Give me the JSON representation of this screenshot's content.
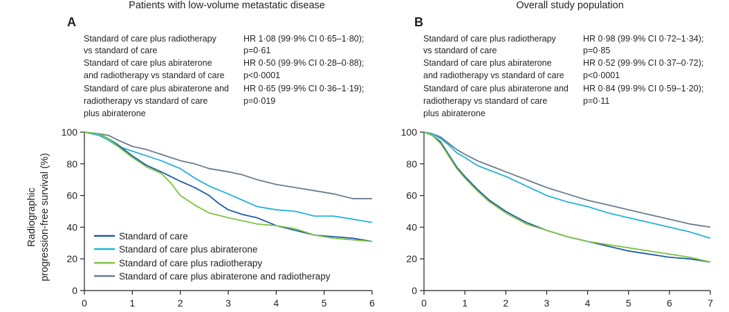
{
  "y_axis_label": [
    "Radiographic",
    "progression-free survival (%)"
  ],
  "legend": [
    {
      "label": "Standard of care",
      "color": "#1d5aa6"
    },
    {
      "label": "Standard of care plus abiraterone",
      "color": "#21b1d9"
    },
    {
      "label": "Standard of care plus radiotherapy",
      "color": "#7ec242"
    },
    {
      "label": "Standard of care plus abiraterone and radiotherapy",
      "color": "#687c8c"
    }
  ],
  "chart_data": [
    {
      "type": "line",
      "panel": "A",
      "title": "Patients with low-volume metastatic disease",
      "xlabel": "",
      "ylabel": "Radiographic progression-free survival (%)",
      "xlim": [
        0,
        6
      ],
      "ylim": [
        0,
        100
      ],
      "xticks": [
        "0",
        "1",
        "2",
        "3",
        "4",
        "5",
        "6"
      ],
      "yticks": [
        "0",
        "20",
        "40",
        "60",
        "80",
        "100"
      ],
      "hazard_ratios": [
        {
          "comparison": [
            "Standard of care plus radiotherapy",
            "vs standard of care"
          ],
          "result": [
            "HR 1·08 (99·9% CI 0·65–1·80);",
            "p=0·61"
          ]
        },
        {
          "comparison": [
            "Standard of care plus abiraterone",
            "and radiotherapy vs standard of care"
          ],
          "result": [
            "HR 0·50 (99·9% CI 0·28–0·88);",
            "p<0·0001"
          ]
        },
        {
          "comparison": [
            "Standard of care plus abiraterone and",
            "radiotherapy vs standard of care",
            "plus abiraterone"
          ],
          "result": [
            "HR 0·65 (99·9% CI 0·36–1·19);",
            "p=0·019"
          ]
        }
      ],
      "series": [
        {
          "name": "Standard of care plus abiraterone and radiotherapy",
          "x": [
            0,
            0.3,
            0.5,
            0.7,
            1.0,
            1.3,
            1.6,
            2.0,
            2.3,
            2.6,
            3.0,
            3.3,
            3.6,
            4.0,
            4.4,
            4.8,
            5.2,
            5.6,
            6.0
          ],
          "y": [
            100,
            99,
            98,
            95,
            91,
            89,
            86,
            82,
            80,
            77,
            75,
            73,
            70,
            67,
            65,
            63,
            61,
            58,
            58
          ]
        },
        {
          "name": "Standard of care plus abiraterone",
          "x": [
            0,
            0.3,
            0.5,
            0.7,
            1.0,
            1.3,
            1.6,
            2.0,
            2.3,
            2.6,
            3.0,
            3.3,
            3.6,
            4.0,
            4.4,
            4.8,
            5.2,
            5.6,
            6.0
          ],
          "y": [
            100,
            98,
            95,
            91,
            88,
            85,
            82,
            77,
            71,
            66,
            61,
            57,
            53,
            51,
            50,
            47,
            47,
            45,
            43
          ]
        },
        {
          "name": "Standard of care",
          "x": [
            0,
            0.3,
            0.5,
            0.7,
            1.0,
            1.3,
            1.6,
            2.0,
            2.3,
            2.6,
            2.8,
            3.0,
            3.3,
            3.6,
            4.0,
            4.4,
            4.8,
            5.2,
            5.6,
            6.0
          ],
          "y": [
            100,
            99,
            96,
            92,
            85,
            79,
            75,
            69,
            65,
            60,
            55,
            51,
            48,
            46,
            41,
            38,
            35,
            34,
            33,
            31
          ]
        },
        {
          "name": "Standard of care plus radiotherapy",
          "x": [
            0,
            0.3,
            0.5,
            0.7,
            1.0,
            1.3,
            1.6,
            1.8,
            2.0,
            2.3,
            2.6,
            3.0,
            3.3,
            3.6,
            4.0,
            4.4,
            4.8,
            5.2,
            5.6,
            6.0
          ],
          "y": [
            100,
            99,
            96,
            91,
            84,
            78,
            74,
            68,
            60,
            54,
            49,
            46,
            44,
            42,
            41,
            39,
            35,
            33,
            32,
            31
          ]
        }
      ]
    },
    {
      "type": "line",
      "panel": "B",
      "title": "Overall study population",
      "xlabel": "",
      "ylabel": "Radiographic progression-free survival (%)",
      "xlim": [
        0,
        7
      ],
      "ylim": [
        0,
        100
      ],
      "xticks": [
        "0",
        "1",
        "2",
        "3",
        "4",
        "5",
        "6",
        "7"
      ],
      "yticks": [
        "0",
        "20",
        "40",
        "60",
        "80",
        "100"
      ],
      "hazard_ratios": [
        {
          "comparison": [
            "Standard of care plus radiotherapy",
            "vs standard of care"
          ],
          "result": [
            "HR 0·98 (99·9% CI 0·72–1·34);",
            "p=0·85"
          ]
        },
        {
          "comparison": [
            "Standard of care plus abiraterone",
            "and radiotherapy vs standard of care"
          ],
          "result": [
            "HR 0·52 (99·9% CI 0·37–0·72);",
            "p<0·0001"
          ]
        },
        {
          "comparison": [
            "Standard of care plus abiraterone and",
            "radiotherapy vs standard of care",
            "plus abiraterone"
          ],
          "result": [
            "HR 0·84 (99·9% CI 0·59–1·20);",
            "p=0·11"
          ]
        }
      ],
      "series": [
        {
          "name": "Standard of care plus abiraterone and radiotherapy",
          "x": [
            0,
            0.2,
            0.4,
            0.6,
            0.8,
            1.0,
            1.3,
            1.6,
            2.0,
            2.5,
            3.0,
            3.5,
            4.0,
            4.5,
            5.0,
            5.5,
            6.0,
            6.5,
            7.0
          ],
          "y": [
            100,
            99,
            97,
            93,
            89,
            86,
            82,
            79,
            75,
            70,
            65,
            61,
            57,
            54,
            51,
            48,
            45,
            42,
            40
          ]
        },
        {
          "name": "Standard of care plus abiraterone",
          "x": [
            0,
            0.2,
            0.4,
            0.6,
            0.8,
            1.0,
            1.3,
            1.6,
            2.0,
            2.5,
            3.0,
            3.5,
            4.0,
            4.5,
            5.0,
            5.5,
            6.0,
            6.5,
            7.0
          ],
          "y": [
            100,
            99,
            96,
            92,
            87,
            84,
            79,
            76,
            72,
            66,
            60,
            56,
            53,
            49,
            46,
            43,
            40,
            37,
            33
          ]
        },
        {
          "name": "Standard of care",
          "x": [
            0,
            0.2,
            0.4,
            0.6,
            0.8,
            1.0,
            1.3,
            1.6,
            2.0,
            2.5,
            3.0,
            3.5,
            4.0,
            4.5,
            5.0,
            5.5,
            6.0,
            6.5,
            7.0
          ],
          "y": [
            100,
            98,
            94,
            86,
            78,
            72,
            64,
            57,
            50,
            43,
            38,
            34,
            31,
            28,
            25,
            23,
            21,
            20,
            18
          ]
        },
        {
          "name": "Standard of care plus radiotherapy",
          "x": [
            0,
            0.2,
            0.4,
            0.6,
            0.8,
            1.0,
            1.3,
            1.6,
            2.0,
            2.5,
            3.0,
            3.5,
            4.0,
            4.5,
            5.0,
            5.5,
            6.0,
            6.5,
            7.0
          ],
          "y": [
            100,
            98,
            93,
            85,
            77,
            71,
            63,
            56,
            49,
            42,
            38,
            34,
            31,
            29,
            27,
            25,
            23,
            21,
            18
          ]
        }
      ]
    }
  ]
}
